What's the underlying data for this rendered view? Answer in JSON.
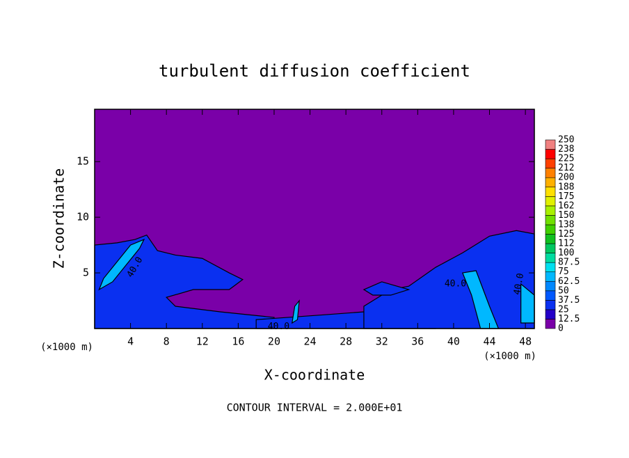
{
  "chart_data": {
    "type": "contour",
    "title": "turbulent diffusion coefficient",
    "x_label": "X-coordinate",
    "y_label": "Z-coordinate",
    "x_unit_left": "(×1000 m)",
    "x_unit_right": "(×1000 m)",
    "footnote": "CONTOUR INTERVAL = 2.000E+01",
    "xlim": [
      0,
      49
    ],
    "ylim": [
      0,
      19.7
    ],
    "xticks": [
      4,
      8,
      12,
      16,
      20,
      24,
      28,
      32,
      36,
      40,
      44,
      48
    ],
    "yticks": [
      5,
      10,
      15
    ],
    "background_value": 0,
    "levels": [
      0,
      12.5,
      25,
      37.5,
      50,
      62.5,
      75,
      87.5,
      100,
      112,
      125,
      138,
      150,
      162,
      175,
      188,
      200,
      212,
      225,
      238,
      250
    ],
    "level_colors": [
      "#7a00a8",
      "#2400c8",
      "#0a30f0",
      "#0058ff",
      "#0088ff",
      "#00b8ff",
      "#00e0f0",
      "#00dca0",
      "#00c860",
      "#10c020",
      "#40d000",
      "#70e000",
      "#a8f000",
      "#e0f000",
      "#ffe000",
      "#ffb000",
      "#ff8000",
      "#ff4000",
      "#ff0000",
      "#f08080"
    ],
    "regions": [
      {
        "value": 25,
        "x": [
          0,
          0,
          2.5,
          4.5,
          5.8,
          7,
          9,
          12,
          15,
          16.5,
          15,
          11,
          8,
          9,
          14,
          20,
          20
        ],
        "z": [
          0,
          7.5,
          7.7,
          8,
          8.4,
          7,
          6.6,
          6.3,
          5,
          4.4,
          3.5,
          3.5,
          2.8,
          2,
          1.5,
          1,
          0
        ]
      },
      {
        "value": 25,
        "x": [
          18,
          18,
          25,
          30,
          34,
          38,
          38
        ],
        "z": [
          0,
          0.8,
          1.2,
          1.5,
          1,
          1.5,
          0
        ]
      },
      {
        "value": 25,
        "x": [
          30,
          30,
          33,
          35,
          38,
          41,
          44,
          47,
          49,
          49
        ],
        "z": [
          0,
          2,
          3.5,
          3.8,
          5.5,
          6.8,
          8.3,
          8.8,
          8.5,
          0
        ]
      },
      {
        "value": 25,
        "x": [
          30,
          32,
          35,
          33,
          31
        ],
        "z": [
          3.5,
          4.2,
          3.5,
          3,
          3
        ]
      },
      {
        "value": 62.5,
        "x": [
          0.5,
          1,
          4,
          5.5,
          5,
          2
        ],
        "z": [
          3.5,
          4.5,
          7.5,
          8,
          7.2,
          4.2
        ]
      },
      {
        "value": 62.5,
        "x": [
          42,
          41,
          42.5,
          44,
          45,
          43
        ],
        "z": [
          3,
          5,
          5.2,
          2,
          0,
          0
        ]
      },
      {
        "value": 62.5,
        "x": [
          47.5,
          47.5,
          49,
          49
        ],
        "z": [
          0.5,
          4,
          3,
          0.5
        ]
      },
      {
        "value": 62.5,
        "x": [
          22,
          22.3,
          22.8,
          22.6
        ],
        "z": [
          0.5,
          2,
          2.5,
          0.8
        ]
      }
    ],
    "contour_labels": [
      "40.0",
      "40.0",
      "40.0",
      "40.0"
    ]
  }
}
